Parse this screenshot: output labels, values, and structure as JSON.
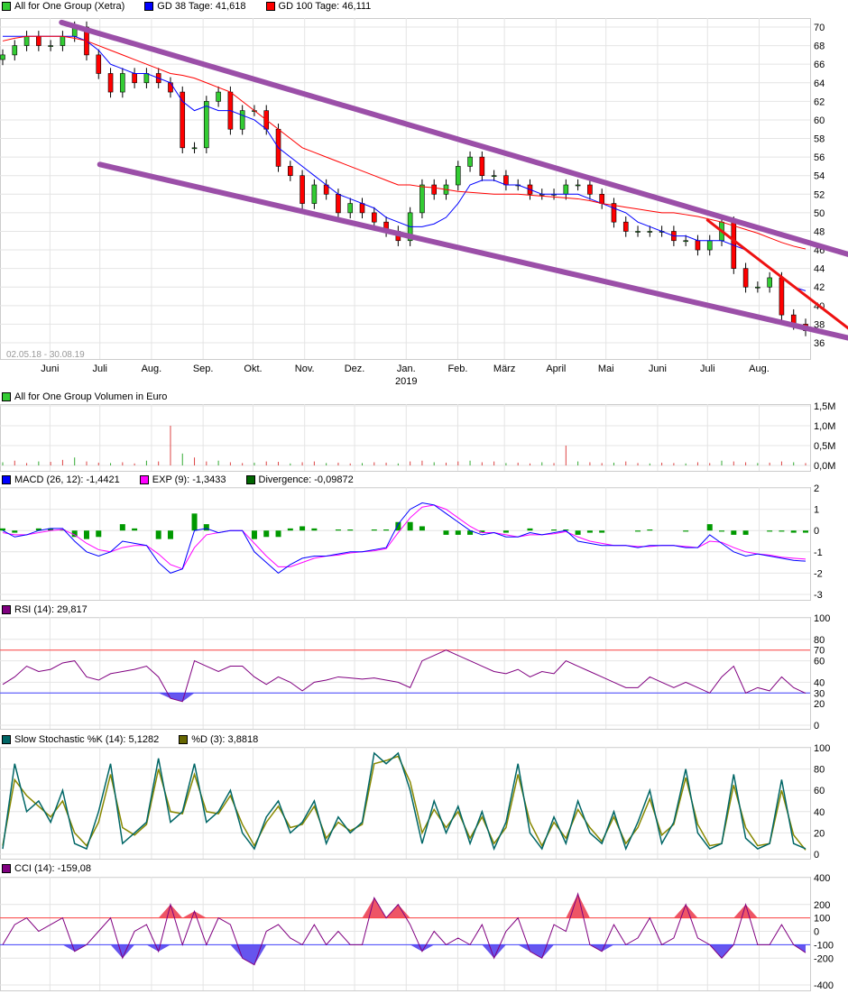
{
  "legends": {
    "price": [
      {
        "label": "All for One Group (Xetra)",
        "color": "#33cc33"
      },
      {
        "label": "GD 38 Tage: 41,618",
        "color": "#0000ff"
      },
      {
        "label": "GD 100 Tage: 46,111",
        "color": "#ff0000"
      }
    ],
    "volume": [
      {
        "label": "All for One Group Volumen in Euro",
        "color": "#33cc33"
      }
    ],
    "macd": [
      {
        "label": "MACD (26, 12): -1,4421",
        "color": "#0000ff"
      },
      {
        "label": "EXP (9): -1,3433",
        "color": "#ff00ff"
      },
      {
        "label": "Divergence: -0,09872",
        "color": "#006600"
      }
    ],
    "rsi": [
      {
        "label": "RSI (14): 29,817",
        "color": "#800080"
      }
    ],
    "stoch": [
      {
        "label": "Slow Stochastic %K (14): 5,1282",
        "color": "#006666"
      },
      {
        "label": "%D (3): 3,8818",
        "color": "#666600"
      }
    ],
    "cci": [
      {
        "label": "CCI (14): -159,08",
        "color": "#800080"
      }
    ]
  },
  "chart_data": [
    {
      "type": "candlestick",
      "name": "price",
      "date_range": "02.05.18 - 30.08.19",
      "xlim": [
        "2018-05-02",
        "2019-08-30"
      ],
      "x_tick_labels": [
        "Juni",
        "Juli",
        "Aug.",
        "Sep.",
        "Okt.",
        "Nov.",
        "Dez.",
        "Jan.",
        "Feb.",
        "März",
        "April",
        "Mai",
        "Juni",
        "Juli",
        "Aug."
      ],
      "x_tick_dates": [
        "2018-06-01",
        "2018-07-01",
        "2018-08-01",
        "2018-09-01",
        "2018-10-01",
        "2018-11-01",
        "2018-12-01",
        "2019-01-01",
        "2019-02-01",
        "2019-03-01",
        "2019-04-01",
        "2019-05-01",
        "2019-06-01",
        "2019-07-01",
        "2019-08-01"
      ],
      "year_label": "2019",
      "ylim": [
        35,
        71
      ],
      "y_ticks": [
        36,
        38,
        40,
        42,
        44,
        46,
        48,
        50,
        52,
        54,
        56,
        58,
        60,
        62,
        64,
        66,
        68,
        70
      ],
      "close": [
        67,
        68,
        69,
        68,
        68,
        69,
        70,
        67,
        65,
        63,
        65,
        64,
        65,
        64,
        63,
        57,
        57,
        62,
        63,
        59,
        61,
        61,
        59,
        55,
        54,
        51,
        53,
        52,
        50,
        51,
        50,
        49,
        48,
        47,
        50,
        53,
        52,
        53,
        55,
        56,
        54,
        54,
        53,
        53,
        52,
        52,
        52,
        53,
        53,
        52,
        51,
        49,
        48,
        48,
        48,
        48,
        47,
        47,
        46,
        47,
        49,
        44,
        42,
        42,
        43,
        39,
        38,
        37.3
      ],
      "series": [
        {
          "name": "GD 38 Tage",
          "color": "#0000ff",
          "values": [
            69,
            69,
            69,
            69,
            69,
            69,
            69,
            68.5,
            67.5,
            66,
            65.5,
            65,
            65,
            64.5,
            64,
            62,
            61,
            61.5,
            61,
            61,
            60.5,
            60,
            59,
            57,
            56,
            55,
            54,
            53,
            52,
            51.5,
            51,
            50.5,
            49.5,
            49,
            48.5,
            48.5,
            48.8,
            49.5,
            51,
            53,
            53.5,
            53.5,
            53,
            53,
            52.5,
            52,
            52,
            52,
            52,
            51.5,
            51,
            50.5,
            50,
            49,
            48.5,
            48,
            47.5,
            47.5,
            47,
            47,
            47,
            46.5,
            46,
            45,
            44,
            43,
            42,
            41.6
          ]
        },
        {
          "name": "GD 100 Tage",
          "color": "#ff0000",
          "values": [
            68.5,
            68.8,
            69,
            69,
            69,
            69,
            68.8,
            68.5,
            68,
            67.5,
            67,
            66.5,
            66,
            65.5,
            65,
            64.8,
            64.5,
            64,
            63.5,
            63,
            62,
            61,
            60,
            59,
            58,
            57,
            56.5,
            56,
            55.5,
            55,
            54.5,
            54,
            53.5,
            53,
            53,
            52.8,
            52.7,
            52.5,
            52.3,
            52.2,
            52.1,
            52,
            52,
            52,
            51.9,
            51.8,
            51.7,
            51.6,
            51.5,
            51.3,
            51,
            50.8,
            50.6,
            50.4,
            50.2,
            50,
            50,
            49.8,
            49.6,
            49.3,
            49,
            48.6,
            48.2,
            47.8,
            47.3,
            46.8,
            46.4,
            46.1
          ]
        }
      ],
      "trendlines": [
        {
          "color": "#9b4fa8",
          "from": [
            "2018-06-08",
            70.5
          ],
          "to": [
            "2019-09-24",
            45.5
          ]
        },
        {
          "color": "#9b4fa8",
          "from": [
            "2018-07-01",
            55.2
          ],
          "to": [
            "2019-09-24",
            36.5
          ]
        },
        {
          "color": "#ee1111",
          "from": [
            "2019-07-01",
            49.2
          ],
          "to": [
            "2019-09-24",
            37.5
          ]
        }
      ]
    },
    {
      "type": "bar",
      "name": "volume",
      "ylim": [
        0,
        1.5
      ],
      "y_tick_labels": [
        "0,0M",
        "0,5M",
        "1,0M",
        "1,5M"
      ],
      "y_ticks": [
        0,
        0.5,
        1.0,
        1.5
      ],
      "values": [
        0.08,
        0.12,
        0.06,
        0.1,
        0.09,
        0.14,
        0.2,
        0.1,
        0.07,
        0.06,
        0.08,
        0.05,
        0.12,
        0.1,
        1.0,
        0.3,
        0.2,
        0.1,
        0.12,
        0.08,
        0.06,
        0.07,
        0.1,
        0.09,
        0.05,
        0.08,
        0.1,
        0.06,
        0.07,
        0.05,
        0.06,
        0.08,
        0.07,
        0.05,
        0.1,
        0.12,
        0.08,
        0.07,
        0.1,
        0.12,
        0.08,
        0.1,
        0.06,
        0.07,
        0.05,
        0.08,
        0.06,
        0.5,
        0.1,
        0.08,
        0.06,
        0.07,
        0.1,
        0.06,
        0.05,
        0.07,
        0.06,
        0.05,
        0.08,
        0.06,
        0.12,
        0.1,
        0.08,
        0.06,
        0.07,
        0.1,
        0.08,
        0.06
      ]
    },
    {
      "type": "line",
      "name": "macd",
      "ylim": [
        -3,
        2
      ],
      "y_ticks": [
        -3,
        -2,
        -1,
        0,
        1,
        2
      ],
      "series": [
        {
          "name": "MACD (26, 12)",
          "color": "#0000ff",
          "values": [
            0,
            -0.3,
            -0.2,
            0,
            0.1,
            0.1,
            -0.5,
            -1.0,
            -1.2,
            -1.0,
            -0.5,
            -0.6,
            -0.7,
            -1.5,
            -2.0,
            -1.8,
            0.0,
            0.1,
            -0.1,
            0,
            0,
            -1.0,
            -1.5,
            -2.0,
            -1.6,
            -1.3,
            -1.2,
            -1.2,
            -1.1,
            -1.0,
            -1.0,
            -0.9,
            -0.8,
            0.3,
            1.0,
            1.3,
            1.2,
            0.8,
            0.4,
            0,
            -0.2,
            -0.1,
            -0.3,
            -0.3,
            -0.1,
            -0.2,
            -0.1,
            0,
            -0.5,
            -0.6,
            -0.7,
            -0.7,
            -0.7,
            -0.8,
            -0.7,
            -0.7,
            -0.7,
            -0.8,
            -0.8,
            -0.2,
            -0.6,
            -1.0,
            -1.2,
            -1.1,
            -1.2,
            -1.3,
            -1.4,
            -1.44
          ]
        },
        {
          "name": "EXP (9)",
          "color": "#ff00ff",
          "values": [
            -0.1,
            -0.2,
            -0.2,
            -0.1,
            0,
            0.05,
            -0.2,
            -0.6,
            -0.9,
            -1.0,
            -0.8,
            -0.7,
            -0.7,
            -1.1,
            -1.6,
            -1.8,
            -0.8,
            -0.2,
            -0.1,
            0,
            0,
            -0.6,
            -1.2,
            -1.7,
            -1.7,
            -1.5,
            -1.3,
            -1.2,
            -1.15,
            -1.05,
            -1.0,
            -0.95,
            -0.85,
            -0.1,
            0.6,
            1.1,
            1.2,
            1.0,
            0.6,
            0.2,
            -0.1,
            -0.1,
            -0.2,
            -0.3,
            -0.2,
            -0.2,
            -0.15,
            -0.05,
            -0.3,
            -0.5,
            -0.6,
            -0.7,
            -0.7,
            -0.75,
            -0.75,
            -0.7,
            -0.7,
            -0.75,
            -0.8,
            -0.5,
            -0.55,
            -0.8,
            -1.0,
            -1.1,
            -1.15,
            -1.25,
            -1.3,
            -1.34
          ]
        },
        {
          "name": "Divergence",
          "color": "#006600",
          "values": [
            0.1,
            -0.1,
            0,
            0.1,
            0.1,
            0.05,
            -0.3,
            -0.4,
            -0.3,
            0,
            0.3,
            0.1,
            0,
            -0.4,
            -0.4,
            0,
            0.8,
            0.3,
            0,
            0,
            0,
            -0.4,
            -0.3,
            -0.3,
            0.1,
            0.2,
            0.1,
            0,
            0.05,
            0.05,
            0,
            0.05,
            0.05,
            0.4,
            0.4,
            0.2,
            0,
            -0.2,
            -0.2,
            -0.2,
            -0.1,
            0,
            -0.1,
            0,
            0.1,
            0,
            0.05,
            0.05,
            -0.2,
            -0.1,
            -0.1,
            0,
            0,
            -0.05,
            0.05,
            0,
            0,
            -0.05,
            0,
            0.3,
            -0.05,
            -0.2,
            -0.2,
            0,
            -0.05,
            -0.05,
            -0.1,
            -0.1
          ]
        }
      ]
    },
    {
      "type": "line",
      "name": "rsi",
      "ylim": [
        0,
        100
      ],
      "y_ticks": [
        0,
        20,
        30,
        40,
        60,
        70,
        80,
        100
      ],
      "ref_lines": [
        {
          "value": 70,
          "color": "#ff4444"
        },
        {
          "value": 30,
          "color": "#4444ff"
        }
      ],
      "series": [
        {
          "name": "RSI (14)",
          "color": "#800080",
          "values": [
            38,
            45,
            55,
            50,
            52,
            58,
            60,
            45,
            42,
            48,
            50,
            52,
            55,
            45,
            25,
            22,
            60,
            55,
            50,
            55,
            55,
            45,
            38,
            45,
            40,
            32,
            40,
            42,
            45,
            44,
            43,
            44,
            42,
            40,
            35,
            60,
            65,
            70,
            65,
            60,
            55,
            50,
            48,
            52,
            45,
            50,
            48,
            60,
            55,
            50,
            45,
            40,
            35,
            35,
            45,
            40,
            35,
            40,
            35,
            30,
            45,
            55,
            30,
            35,
            32,
            45,
            35,
            29.8
          ]
        }
      ]
    },
    {
      "type": "line",
      "name": "stoch",
      "ylim": [
        0,
        100
      ],
      "y_ticks": [
        0,
        20,
        40,
        60,
        80,
        100
      ],
      "series": [
        {
          "name": "%K (14)",
          "color": "#006666",
          "values": [
            5,
            85,
            40,
            50,
            30,
            60,
            10,
            5,
            40,
            85,
            10,
            20,
            30,
            90,
            30,
            40,
            85,
            30,
            40,
            60,
            20,
            5,
            35,
            50,
            20,
            30,
            50,
            10,
            35,
            20,
            30,
            95,
            85,
            95,
            60,
            10,
            50,
            20,
            45,
            10,
            40,
            5,
            30,
            85,
            20,
            5,
            35,
            10,
            50,
            20,
            10,
            40,
            5,
            30,
            60,
            10,
            30,
            80,
            20,
            5,
            10,
            75,
            15,
            5,
            10,
            70,
            10,
            5.1
          ]
        },
        {
          "name": "%D (3)",
          "color": "#888800",
          "values": [
            8,
            70,
            55,
            45,
            35,
            50,
            20,
            8,
            30,
            75,
            25,
            18,
            28,
            80,
            40,
            38,
            75,
            40,
            38,
            55,
            28,
            8,
            30,
            45,
            25,
            28,
            45,
            15,
            30,
            22,
            28,
            85,
            88,
            92,
            68,
            20,
            42,
            25,
            40,
            15,
            35,
            10,
            25,
            75,
            30,
            8,
            30,
            15,
            42,
            25,
            12,
            35,
            10,
            25,
            52,
            18,
            28,
            72,
            28,
            8,
            10,
            65,
            25,
            8,
            10,
            60,
            18,
            3.9
          ]
        }
      ]
    },
    {
      "type": "line",
      "name": "cci",
      "ylim": [
        -400,
        400
      ],
      "y_ticks": [
        -400,
        -200,
        -100,
        0,
        100,
        200,
        400
      ],
      "ref_lines": [
        {
          "value": 100,
          "color": "#ff4444"
        },
        {
          "value": -100,
          "color": "#4444ff"
        }
      ],
      "series": [
        {
          "name": "CCI (14)",
          "color": "#800080",
          "values": [
            -100,
            50,
            100,
            0,
            50,
            100,
            -150,
            -100,
            0,
            100,
            -200,
            0,
            50,
            -150,
            200,
            -100,
            150,
            -100,
            100,
            50,
            -200,
            -250,
            0,
            50,
            -50,
            -100,
            50,
            -100,
            0,
            -100,
            -100,
            250,
            100,
            200,
            50,
            -150,
            0,
            -100,
            -50,
            -100,
            50,
            -200,
            0,
            100,
            -150,
            -200,
            50,
            0,
            280,
            -100,
            -150,
            50,
            -100,
            -50,
            100,
            -100,
            -50,
            200,
            -50,
            -100,
            -200,
            -100,
            200,
            -100,
            -100,
            50,
            -100,
            -159.08
          ]
        }
      ]
    }
  ]
}
